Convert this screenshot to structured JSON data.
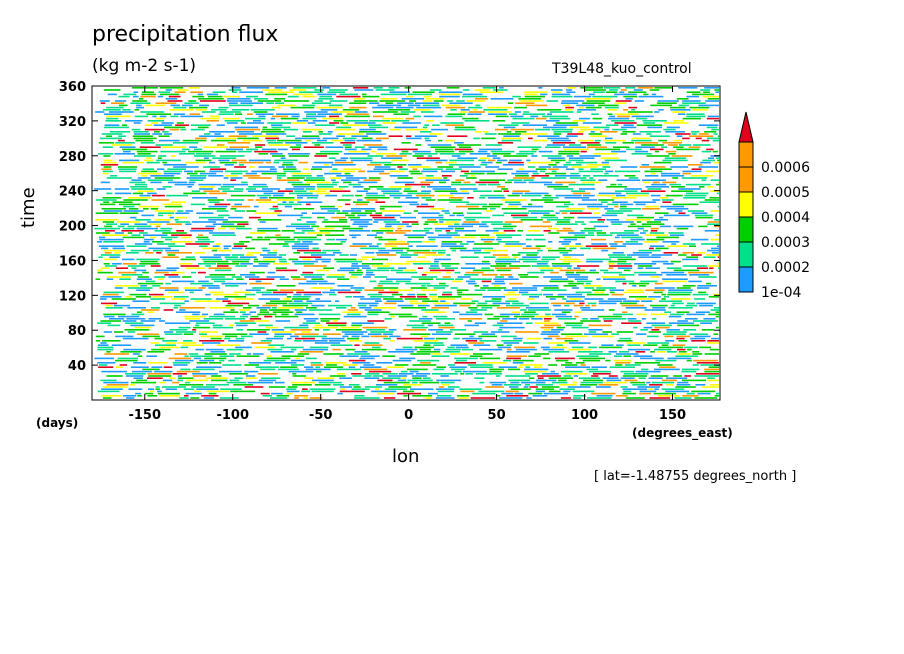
{
  "chart_data": {
    "type": "heatmap",
    "title": "precipitation flux",
    "units": "(kg m-2 s-1)",
    "run_name": "T39L48_kuo_control",
    "xlabel": "lon",
    "ylabel": "time",
    "x_unit": "(degrees_east)",
    "y_unit": "(days)",
    "slice_note": "[ lat=-1.48755 degrees_north ]",
    "xlim": [
      -180,
      177
    ],
    "ylim": [
      0,
      360
    ],
    "x_ticks": [
      -150,
      -100,
      -50,
      0,
      50,
      100,
      150
    ],
    "x_tick_labels": [
      "-150",
      "-100",
      "-50",
      "0",
      "50",
      "100",
      "150"
    ],
    "y_ticks": [
      40,
      80,
      120,
      160,
      200,
      240,
      280,
      320,
      360
    ],
    "y_tick_labels": [
      "40",
      "80",
      "120",
      "160",
      "200",
      "240",
      "280",
      "320",
      "360"
    ],
    "colorbar": {
      "levels": [
        0.0001,
        0.0002,
        0.0003,
        0.0004,
        0.0005,
        0.0006
      ],
      "labels": [
        "1e-04",
        "0.0002",
        "0.0003",
        "0.0004",
        "0.0005",
        "0.0006"
      ],
      "colors": [
        "#1e9bff",
        "#00e08a",
        "#00d000",
        "#ffff00",
        "#ff9900",
        "#e0001e"
      ],
      "extend": "max"
    }
  }
}
